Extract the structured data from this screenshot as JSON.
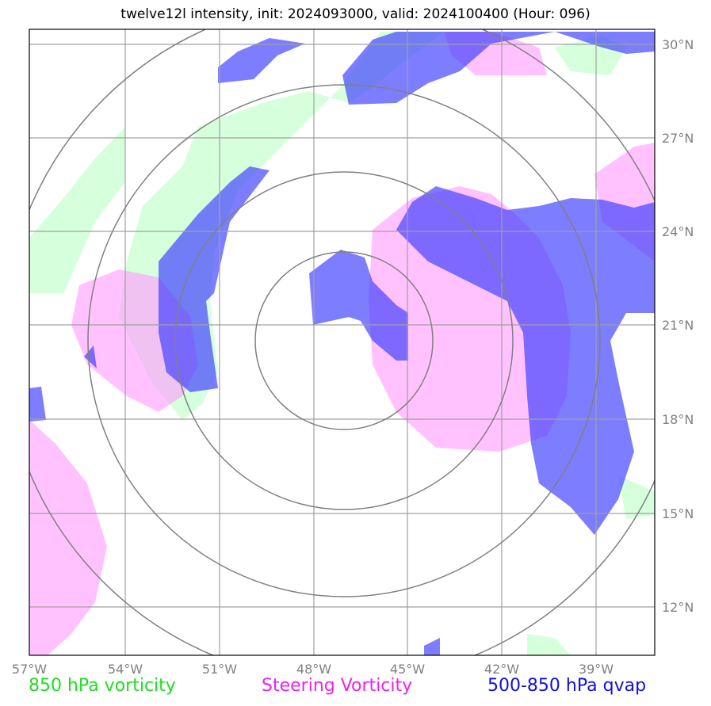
{
  "title": "twelve12l intensity, init: 2024093000, valid: 2024100400 (Hour: 096)",
  "lon_labels": [
    "57°W",
    "54°W",
    "51°W",
    "48°W",
    "45°W",
    "42°W",
    "39°W"
  ],
  "lat_labels": [
    "30°N",
    "27°N",
    "24°N",
    "21°N",
    "18°N",
    "15°N",
    "12°N"
  ],
  "legend": {
    "green": "850 hPa vorticity",
    "magenta": "Steering Vorticity",
    "blue": "500-850 hPa qvap"
  },
  "colors": {
    "vorticity_850": "#c8ffd0",
    "steering_vorticity": "#ff99ff",
    "qvap": "#4040ff",
    "grid": "#a0a0a0",
    "range_rings": "#808080"
  }
}
